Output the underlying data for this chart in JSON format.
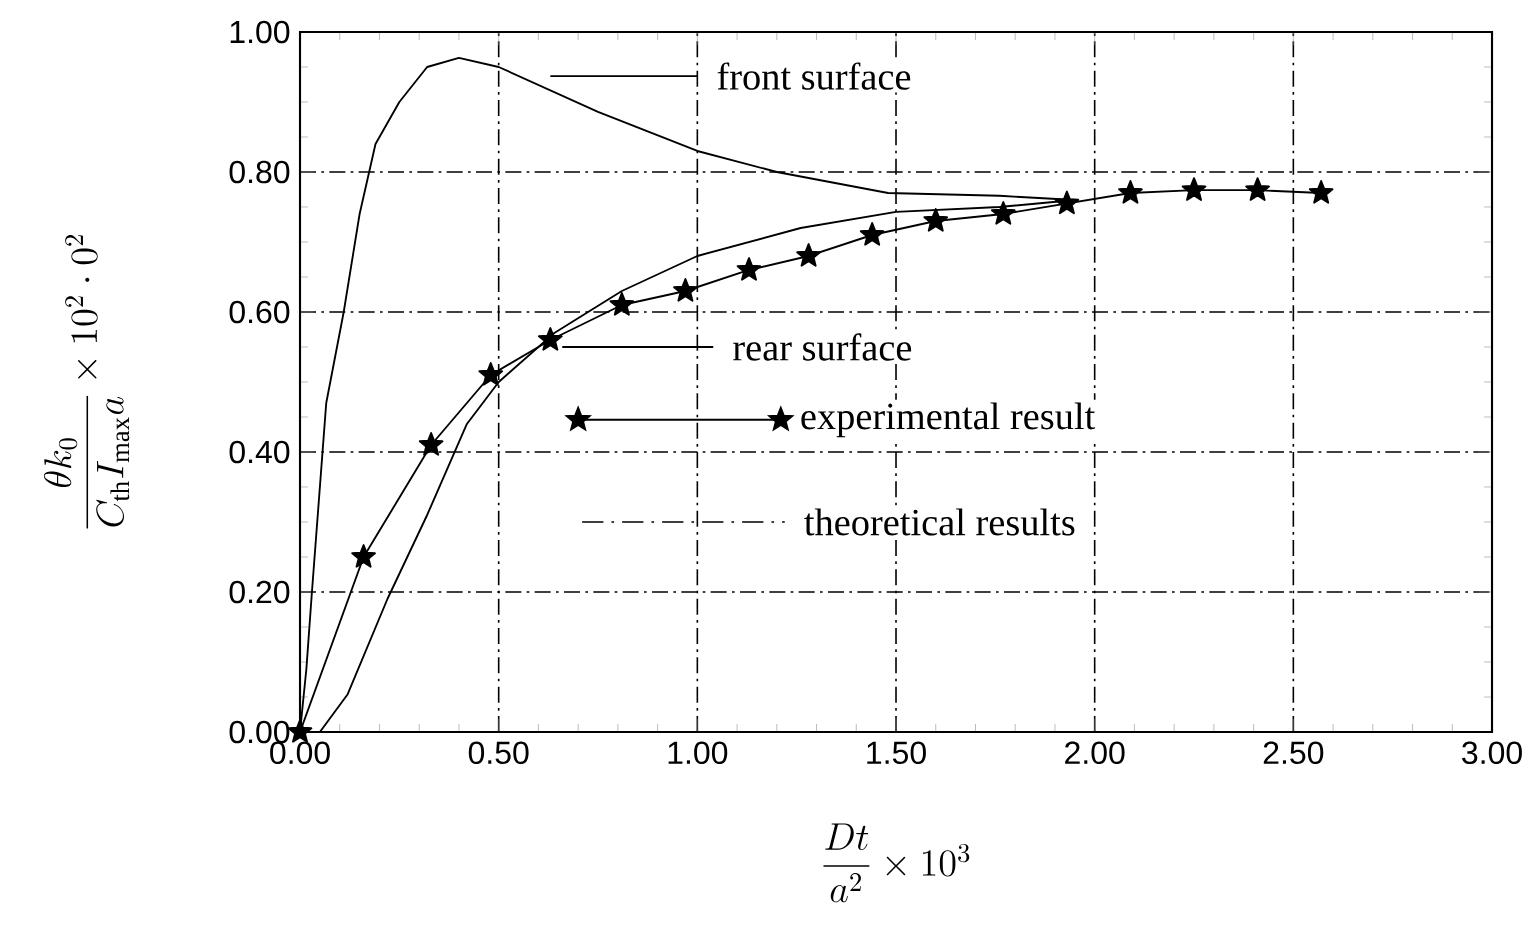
{
  "chart_data": {
    "type": "line",
    "xlabel": "\\dfrac{Dt}{a^{2}} \\times 10^{3}",
    "ylabel": "\\dfrac{\\theta k_{0}}{C_{\\mathrm{th}} I_{\\max} a} \\times 10^{2}\\cdot 0^{2}",
    "xlim": [
      0,
      3
    ],
    "ylim": [
      0,
      1
    ],
    "xticks": [
      {
        "value": 0,
        "label": "0.00"
      },
      {
        "value": 0.5,
        "label": "0.50"
      },
      {
        "value": 1,
        "label": "1.00"
      },
      {
        "value": 1.5,
        "label": "1.50"
      },
      {
        "value": 2,
        "label": "2.00"
      },
      {
        "value": 2.5,
        "label": "2.50"
      },
      {
        "value": 3,
        "label": "3.00"
      }
    ],
    "yticks": [
      {
        "value": 0,
        "label": "0.00"
      },
      {
        "value": 0.2,
        "label": "0.20"
      },
      {
        "value": 0.4,
        "label": "0.40"
      },
      {
        "value": 0.6,
        "label": "0.60"
      },
      {
        "value": 0.8,
        "label": "0.80"
      },
      {
        "value": 1,
        "label": "1.00"
      }
    ],
    "grid": true,
    "legend": "top",
    "series": [
      {
        "name": "front surface",
        "color": "#000000",
        "marker": "none",
        "x": [
          0,
          0.016,
          0.03,
          0.066,
          0.11,
          0.15,
          0.19,
          0.25,
          0.32,
          0.4,
          0.5,
          0.75,
          1.0,
          1.2,
          1.48,
          1.76,
          1.95
        ],
        "values": [
          0,
          0.09,
          0.2,
          0.47,
          0.6,
          0.74,
          0.84,
          0.9,
          0.95,
          0.963,
          0.95,
          0.886,
          0.83,
          0.8,
          0.77,
          0.766,
          0.76
        ]
      },
      {
        "name": "rear surface",
        "color": "#000000",
        "marker": "none",
        "x": [
          0.05,
          0.12,
          0.22,
          0.32,
          0.42,
          0.5,
          0.64,
          0.81,
          1.0,
          1.26,
          1.5,
          1.76,
          1.95
        ],
        "values": [
          0,
          0.054,
          0.19,
          0.31,
          0.44,
          0.5,
          0.57,
          0.63,
          0.68,
          0.72,
          0.743,
          0.75,
          0.76
        ]
      },
      {
        "name": "experimental result",
        "color": "#000000",
        "marker": "star",
        "x": [
          0,
          0.16,
          0.33,
          0.48,
          0.63,
          0.81,
          0.97,
          1.13,
          1.28,
          1.44,
          1.6,
          1.77,
          1.93,
          2.09,
          2.25,
          2.41,
          2.57
        ],
        "values": [
          0,
          0.25,
          0.41,
          0.51,
          0.56,
          0.61,
          0.63,
          0.66,
          0.68,
          0.71,
          0.73,
          0.74,
          0.755,
          0.77,
          0.774,
          0.774,
          0.77
        ]
      }
    ],
    "annotations": [
      "theoretical results"
    ]
  }
}
